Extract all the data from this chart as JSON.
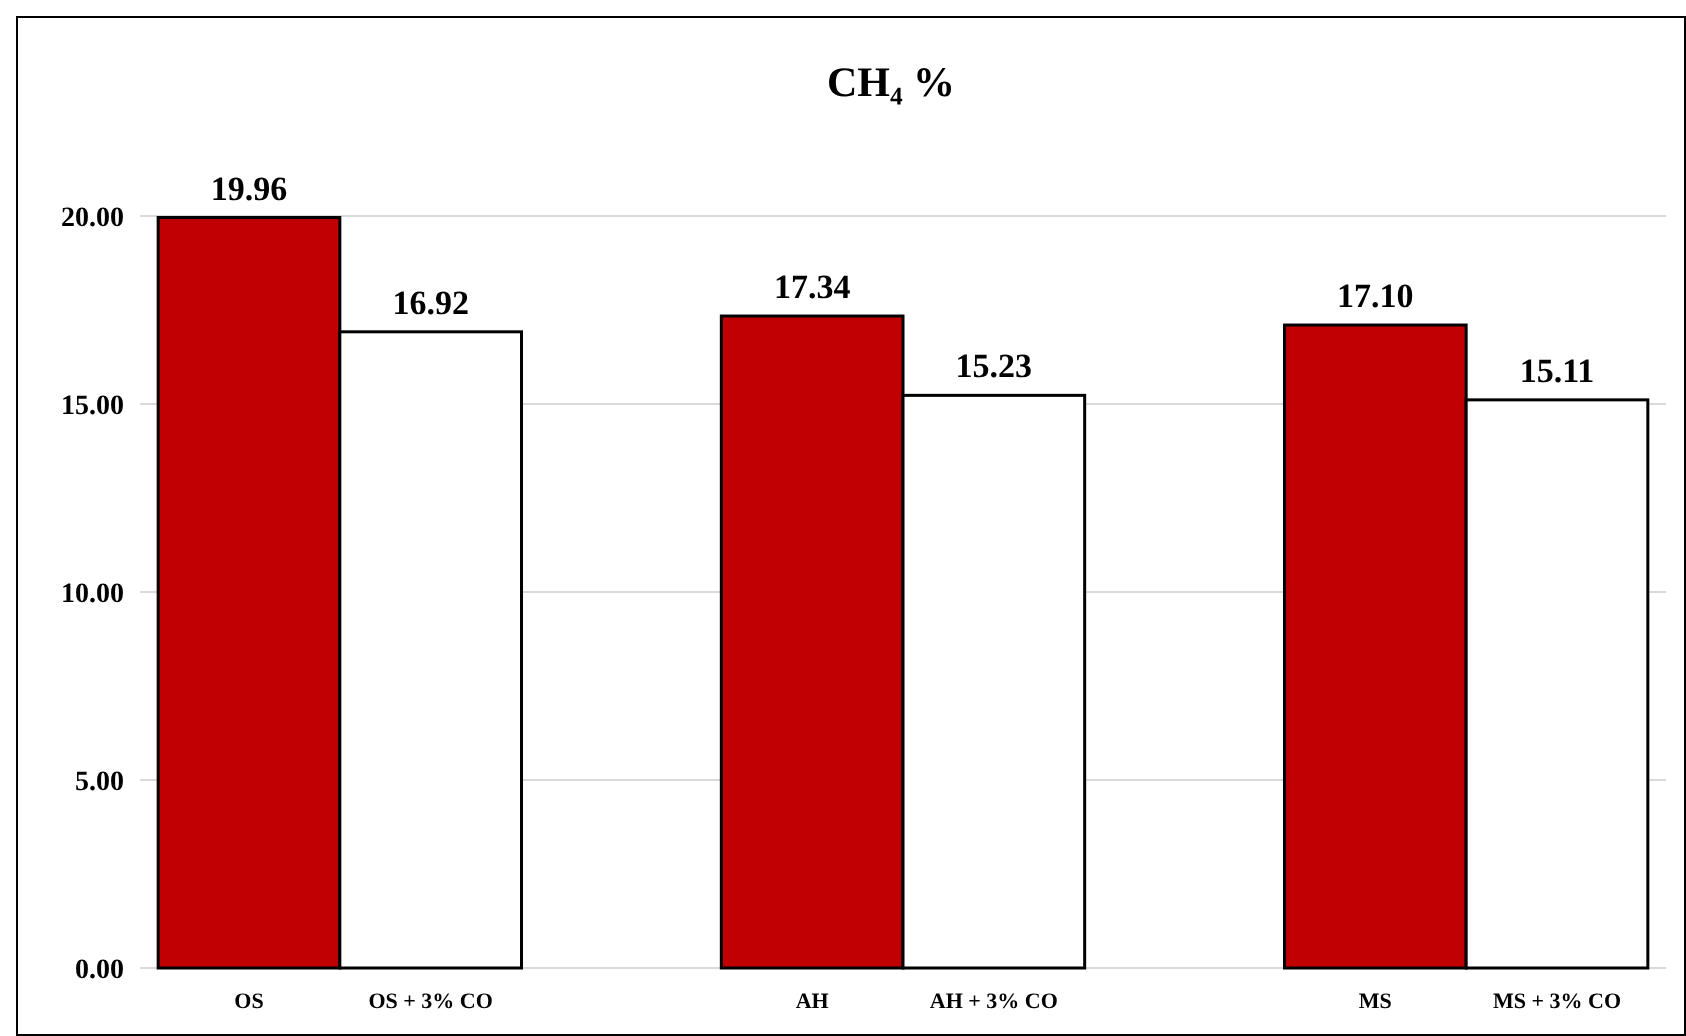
{
  "chart_data": {
    "type": "bar",
    "title": "CH₄ %",
    "categories": [
      "OS",
      "OS + 3% CO",
      "AH",
      "AH + 3% CO",
      "MS",
      "MS + 3% CO"
    ],
    "values": [
      19.96,
      16.92,
      17.34,
      15.23,
      17.1,
      15.11
    ],
    "value_labels": [
      "19.96",
      "16.92",
      "17.34",
      "15.23",
      "17.10",
      "15.11"
    ],
    "colors": [
      "#c00000",
      "#ffffff",
      "#c00000",
      "#ffffff",
      "#c00000",
      "#ffffff"
    ],
    "ylim": [
      0,
      20
    ],
    "yticks": [
      {
        "value": 0,
        "label": "0.00"
      },
      {
        "value": 5,
        "label": "5.00"
      },
      {
        "value": 10,
        "label": "10.00"
      },
      {
        "value": 15,
        "label": "15.00"
      },
      {
        "value": 20,
        "label": "20.00"
      }
    ],
    "grid": "y"
  }
}
